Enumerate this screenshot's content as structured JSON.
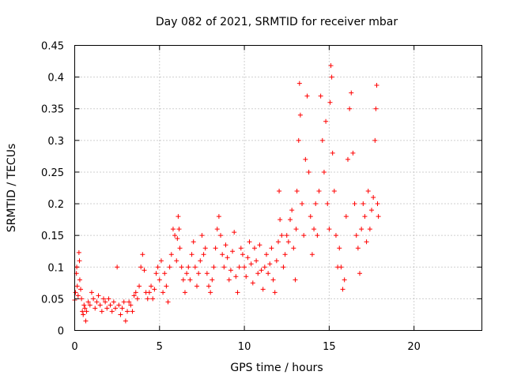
{
  "chart_data": {
    "type": "scatter",
    "title": "Day 082 of 2021, SRMTID for receiver mbar",
    "xlabel": "GPS time / hours",
    "ylabel": "SRMTID / TECUs",
    "xlim": [
      0,
      24
    ],
    "ylim": [
      0,
      0.45
    ],
    "xticks": [
      0,
      5,
      10,
      15,
      20
    ],
    "xtick_labels": [
      "0",
      "5",
      "10",
      "15",
      "20"
    ],
    "yticks": [
      0,
      0.05,
      0.1,
      0.15,
      0.2,
      0.25,
      0.3,
      0.35,
      0.4,
      0.45
    ],
    "ytick_labels": [
      "0",
      "0.05",
      "0.1",
      "0.15",
      "0.2",
      "0.25",
      "0.3",
      "0.35",
      "0.4",
      "0.45"
    ],
    "grid": true,
    "marker": "+",
    "color": "#ff0000",
    "series": [
      {
        "name": "SRMTID",
        "points": [
          [
            0.0,
            0.048
          ],
          [
            0.05,
            0.06
          ],
          [
            0.1,
            0.09
          ],
          [
            0.12,
            0.1
          ],
          [
            0.15,
            0.07
          ],
          [
            0.2,
            0.055
          ],
          [
            0.25,
            0.123
          ],
          [
            0.28,
            0.11
          ],
          [
            0.3,
            0.08
          ],
          [
            0.35,
            0.065
          ],
          [
            0.4,
            0.05
          ],
          [
            0.45,
            0.03
          ],
          [
            0.5,
            0.025
          ],
          [
            0.55,
            0.04
          ],
          [
            0.6,
            0.035
          ],
          [
            0.65,
            0.015
          ],
          [
            0.7,
            0.03
          ],
          [
            0.8,
            0.045
          ],
          [
            0.9,
            0.04
          ],
          [
            1.0,
            0.06
          ],
          [
            1.1,
            0.05
          ],
          [
            1.2,
            0.035
          ],
          [
            1.3,
            0.045
          ],
          [
            1.4,
            0.055
          ],
          [
            1.5,
            0.04
          ],
          [
            1.6,
            0.03
          ],
          [
            1.7,
            0.05
          ],
          [
            1.8,
            0.045
          ],
          [
            1.9,
            0.035
          ],
          [
            2.0,
            0.05
          ],
          [
            2.1,
            0.04
          ],
          [
            2.2,
            0.03
          ],
          [
            2.3,
            0.045
          ],
          [
            2.4,
            0.035
          ],
          [
            2.5,
            0.1
          ],
          [
            2.6,
            0.04
          ],
          [
            2.7,
            0.025
          ],
          [
            2.8,
            0.035
          ],
          [
            2.9,
            0.045
          ],
          [
            3.0,
            0.015
          ],
          [
            3.1,
            0.03
          ],
          [
            3.2,
            0.045
          ],
          [
            3.3,
            0.04
          ],
          [
            3.4,
            0.03
          ],
          [
            3.5,
            0.055
          ],
          [
            3.6,
            0.06
          ],
          [
            3.7,
            0.05
          ],
          [
            3.8,
            0.07
          ],
          [
            3.9,
            0.1
          ],
          [
            4.0,
            0.12
          ],
          [
            4.1,
            0.095
          ],
          [
            4.2,
            0.06
          ],
          [
            4.3,
            0.05
          ],
          [
            4.4,
            0.06
          ],
          [
            4.5,
            0.07
          ],
          [
            4.6,
            0.05
          ],
          [
            4.7,
            0.065
          ],
          [
            4.8,
            0.09
          ],
          [
            4.9,
            0.1
          ],
          [
            5.0,
            0.08
          ],
          [
            5.1,
            0.11
          ],
          [
            5.2,
            0.06
          ],
          [
            5.3,
            0.09
          ],
          [
            5.4,
            0.07
          ],
          [
            5.5,
            0.045
          ],
          [
            5.6,
            0.1
          ],
          [
            5.7,
            0.12
          ],
          [
            5.8,
            0.16
          ],
          [
            5.9,
            0.15
          ],
          [
            6.0,
            0.11
          ],
          [
            6.05,
            0.145
          ],
          [
            6.1,
            0.18
          ],
          [
            6.15,
            0.16
          ],
          [
            6.2,
            0.13
          ],
          [
            6.3,
            0.1
          ],
          [
            6.4,
            0.08
          ],
          [
            6.5,
            0.06
          ],
          [
            6.6,
            0.09
          ],
          [
            6.7,
            0.1
          ],
          [
            6.8,
            0.08
          ],
          [
            6.9,
            0.12
          ],
          [
            7.0,
            0.14
          ],
          [
            7.1,
            0.1
          ],
          [
            7.2,
            0.07
          ],
          [
            7.3,
            0.09
          ],
          [
            7.4,
            0.11
          ],
          [
            7.5,
            0.15
          ],
          [
            7.6,
            0.12
          ],
          [
            7.7,
            0.13
          ],
          [
            7.8,
            0.09
          ],
          [
            7.9,
            0.07
          ],
          [
            8.0,
            0.06
          ],
          [
            8.1,
            0.08
          ],
          [
            8.2,
            0.1
          ],
          [
            8.3,
            0.13
          ],
          [
            8.4,
            0.16
          ],
          [
            8.5,
            0.18
          ],
          [
            8.6,
            0.15
          ],
          [
            8.7,
            0.12
          ],
          [
            8.8,
            0.1
          ],
          [
            8.9,
            0.135
          ],
          [
            9.0,
            0.115
          ],
          [
            9.1,
            0.08
          ],
          [
            9.2,
            0.095
          ],
          [
            9.3,
            0.125
          ],
          [
            9.4,
            0.155
          ],
          [
            9.5,
            0.085
          ],
          [
            9.6,
            0.06
          ],
          [
            9.7,
            0.1
          ],
          [
            9.8,
            0.13
          ],
          [
            9.9,
            0.12
          ],
          [
            10.0,
            0.1
          ],
          [
            10.1,
            0.085
          ],
          [
            10.2,
            0.115
          ],
          [
            10.3,
            0.14
          ],
          [
            10.4,
            0.105
          ],
          [
            10.5,
            0.075
          ],
          [
            10.6,
            0.13
          ],
          [
            10.7,
            0.11
          ],
          [
            10.8,
            0.09
          ],
          [
            10.9,
            0.135
          ],
          [
            11.0,
            0.095
          ],
          [
            11.1,
            0.065
          ],
          [
            11.2,
            0.1
          ],
          [
            11.3,
            0.12
          ],
          [
            11.4,
            0.09
          ],
          [
            11.5,
            0.105
          ],
          [
            11.6,
            0.13
          ],
          [
            11.7,
            0.08
          ],
          [
            11.8,
            0.06
          ],
          [
            11.9,
            0.11
          ],
          [
            12.0,
            0.14
          ],
          [
            12.05,
            0.22
          ],
          [
            12.1,
            0.175
          ],
          [
            12.2,
            0.15
          ],
          [
            12.3,
            0.1
          ],
          [
            12.4,
            0.12
          ],
          [
            12.5,
            0.15
          ],
          [
            12.6,
            0.14
          ],
          [
            12.7,
            0.175
          ],
          [
            12.8,
            0.19
          ],
          [
            12.9,
            0.13
          ],
          [
            13.0,
            0.08
          ],
          [
            13.05,
            0.16
          ],
          [
            13.1,
            0.22
          ],
          [
            13.2,
            0.3
          ],
          [
            13.25,
            0.39
          ],
          [
            13.3,
            0.34
          ],
          [
            13.4,
            0.2
          ],
          [
            13.5,
            0.15
          ],
          [
            13.6,
            0.27
          ],
          [
            13.7,
            0.37
          ],
          [
            13.8,
            0.25
          ],
          [
            13.9,
            0.18
          ],
          [
            14.0,
            0.12
          ],
          [
            14.1,
            0.16
          ],
          [
            14.2,
            0.2
          ],
          [
            14.3,
            0.15
          ],
          [
            14.4,
            0.22
          ],
          [
            14.5,
            0.37
          ],
          [
            14.6,
            0.3
          ],
          [
            14.7,
            0.25
          ],
          [
            14.8,
            0.33
          ],
          [
            14.9,
            0.2
          ],
          [
            15.0,
            0.16
          ],
          [
            15.05,
            0.36
          ],
          [
            15.1,
            0.418
          ],
          [
            15.15,
            0.4
          ],
          [
            15.2,
            0.28
          ],
          [
            15.3,
            0.22
          ],
          [
            15.4,
            0.15
          ],
          [
            15.5,
            0.1
          ],
          [
            15.6,
            0.13
          ],
          [
            15.7,
            0.1
          ],
          [
            15.8,
            0.065
          ],
          [
            15.9,
            0.08
          ],
          [
            16.0,
            0.18
          ],
          [
            16.1,
            0.27
          ],
          [
            16.2,
            0.35
          ],
          [
            16.3,
            0.375
          ],
          [
            16.4,
            0.28
          ],
          [
            16.5,
            0.2
          ],
          [
            16.6,
            0.15
          ],
          [
            16.7,
            0.13
          ],
          [
            16.8,
            0.09
          ],
          [
            16.9,
            0.16
          ],
          [
            17.0,
            0.2
          ],
          [
            17.1,
            0.18
          ],
          [
            17.2,
            0.14
          ],
          [
            17.3,
            0.22
          ],
          [
            17.4,
            0.16
          ],
          [
            17.5,
            0.19
          ],
          [
            17.6,
            0.21
          ],
          [
            17.7,
            0.3
          ],
          [
            17.75,
            0.35
          ],
          [
            17.8,
            0.387
          ],
          [
            17.85,
            0.2
          ],
          [
            17.9,
            0.18
          ]
        ]
      }
    ]
  }
}
